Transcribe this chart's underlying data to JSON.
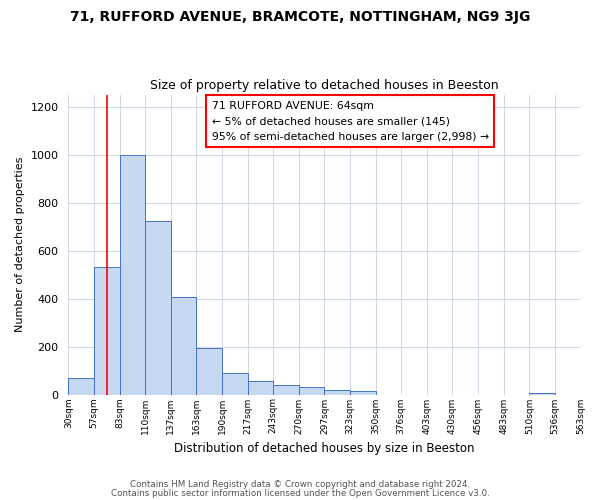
{
  "title": "71, RUFFORD AVENUE, BRAMCOTE, NOTTINGHAM, NG9 3JG",
  "subtitle": "Size of property relative to detached houses in Beeston",
  "xlabel": "Distribution of detached houses by size in Beeston",
  "ylabel": "Number of detached properties",
  "bar_values": [
    70,
    530,
    1000,
    725,
    405,
    195,
    90,
    57,
    40,
    30,
    18,
    15,
    0,
    0,
    0,
    0,
    0,
    0,
    5,
    0
  ],
  "bin_labels": [
    "30sqm",
    "57sqm",
    "83sqm",
    "110sqm",
    "137sqm",
    "163sqm",
    "190sqm",
    "217sqm",
    "243sqm",
    "270sqm",
    "297sqm",
    "323sqm",
    "350sqm",
    "376sqm",
    "403sqm",
    "430sqm",
    "456sqm",
    "483sqm",
    "510sqm",
    "536sqm",
    "563sqm"
  ],
  "bar_color": "#c6d9f1",
  "bar_edge_color": "#4472c4",
  "ylim": [
    0,
    1250
  ],
  "yticks": [
    0,
    200,
    400,
    600,
    800,
    1000,
    1200
  ],
  "red_line_x": 1.5,
  "annotation_line1": "71 RUFFORD AVENUE: 64sqm",
  "annotation_line2": "← 5% of detached houses are smaller (145)",
  "annotation_line3": "95% of semi-detached houses are larger (2,998) →",
  "footer_line1": "Contains HM Land Registry data © Crown copyright and database right 2024.",
  "footer_line2": "Contains public sector information licensed under the Open Government Licence v3.0.",
  "background_color": "#ffffff",
  "grid_color": "#d0d8e8"
}
